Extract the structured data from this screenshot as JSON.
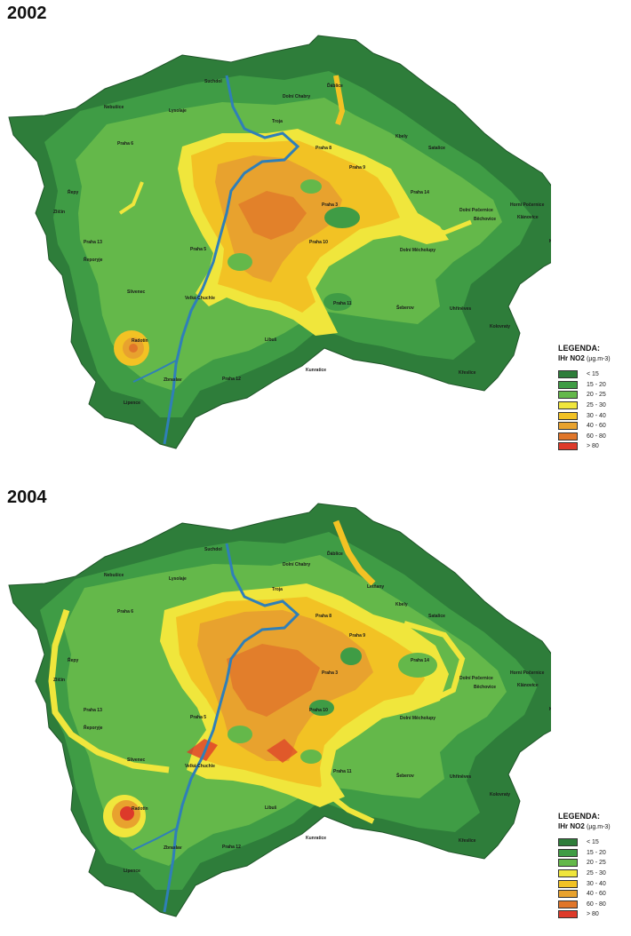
{
  "panels": [
    {
      "year": "2002",
      "places": [
        [
          "Suchdol",
          230,
          93
        ],
        [
          "Dolní Chabry",
          318,
          110
        ],
        [
          "Ďáblice",
          368,
          98
        ],
        [
          "Troja",
          306,
          138
        ],
        [
          "Praha 8",
          355,
          168
        ],
        [
          "Praha 9",
          393,
          190
        ],
        [
          "Kbely",
          445,
          155
        ],
        [
          "Satalice",
          482,
          168
        ],
        [
          "Praha 6",
          132,
          163
        ],
        [
          "Praha 14",
          462,
          218
        ],
        [
          "Horní Počernice",
          574,
          232
        ],
        [
          "Dolní Počernice",
          517,
          238
        ],
        [
          "Praha 3",
          362,
          232
        ],
        [
          "Praha 10",
          348,
          274
        ],
        [
          "Klánovice",
          582,
          246
        ],
        [
          "Koloděje",
          618,
          273
        ],
        [
          "Běchovice",
          533,
          248
        ],
        [
          "Praha 5",
          214,
          282
        ],
        [
          "Praha 11",
          375,
          343
        ],
        [
          "Lipence",
          139,
          455
        ],
        [
          "Zbraslav",
          184,
          429
        ],
        [
          "Praha 12",
          250,
          428
        ],
        [
          "Šeberov",
          446,
          348
        ],
        [
          "Kunratice",
          344,
          418
        ],
        [
          "Dolní Měcholupy",
          450,
          283
        ],
        [
          "Uhříněves",
          506,
          349
        ],
        [
          "Kolovraty",
          551,
          369
        ],
        [
          "Nebušice",
          117,
          122
        ],
        [
          "Lysolaje",
          190,
          126
        ],
        [
          "Řepy",
          76,
          218
        ],
        [
          "Zličín",
          60,
          240
        ],
        [
          "Velká Chuchle",
          208,
          337
        ],
        [
          "Slivenec",
          143,
          330
        ],
        [
          "Radotín",
          148,
          385
        ],
        [
          "Řeporyje",
          94,
          294
        ],
        [
          "Praha 13",
          94,
          274
        ],
        [
          "Křeslice",
          516,
          421
        ],
        [
          "Libuš",
          298,
          384
        ]
      ]
    },
    {
      "year": "2004",
      "places": [
        [
          "Suchdol",
          230,
          620
        ],
        [
          "Dolní Chabry",
          318,
          637
        ],
        [
          "Ďáblice",
          368,
          625
        ],
        [
          "Troja",
          306,
          665
        ],
        [
          "Praha 8",
          355,
          695
        ],
        [
          "Praha 9",
          393,
          717
        ],
        [
          "Kbely",
          445,
          682
        ],
        [
          "Letňany",
          413,
          662
        ],
        [
          "Satalice",
          482,
          695
        ],
        [
          "Praha 6",
          132,
          690
        ],
        [
          "Praha 14",
          462,
          745
        ],
        [
          "Horní Počernice",
          574,
          759
        ],
        [
          "Dolní Počernice",
          517,
          765
        ],
        [
          "Praha 3",
          362,
          759
        ],
        [
          "Praha 10",
          348,
          801
        ],
        [
          "Klánovice",
          582,
          773
        ],
        [
          "Koloděje",
          618,
          800
        ],
        [
          "Běchovice",
          533,
          775
        ],
        [
          "Praha 5",
          214,
          809
        ],
        [
          "Praha 11",
          375,
          870
        ],
        [
          "Lipence",
          139,
          982
        ],
        [
          "Zbraslav",
          184,
          956
        ],
        [
          "Praha 12",
          250,
          955
        ],
        [
          "Šeberov",
          446,
          875
        ],
        [
          "Kunratice",
          344,
          945
        ],
        [
          "Dolní Měcholupy",
          450,
          810
        ],
        [
          "Uhříněves",
          506,
          876
        ],
        [
          "Kolovraty",
          551,
          896
        ],
        [
          "Nebušice",
          117,
          649
        ],
        [
          "Lysolaje",
          190,
          653
        ],
        [
          "Řepy",
          76,
          745
        ],
        [
          "Zličín",
          60,
          767
        ],
        [
          "Velká Chuchle",
          208,
          864
        ],
        [
          "Slivenec",
          143,
          857
        ],
        [
          "Radotín",
          148,
          912
        ],
        [
          "Řeporyje",
          94,
          821
        ],
        [
          "Praha 13",
          94,
          801
        ],
        [
          "Křeslice",
          516,
          948
        ],
        [
          "Libuš",
          298,
          911
        ]
      ]
    }
  ],
  "legend": {
    "title": "LEGENDA:",
    "subtitle": "IHr NO2",
    "unit": "(µg.m-3)",
    "items": [
      {
        "label": "< 15",
        "color": "#2e7d3a"
      },
      {
        "label": "15 - 20",
        "color": "#3f9c45"
      },
      {
        "label": "20 - 25",
        "color": "#64b84a"
      },
      {
        "label": "25 - 30",
        "color": "#f0e63c"
      },
      {
        "label": "30 - 40",
        "color": "#f2c224"
      },
      {
        "label": "40 - 60",
        "color": "#e8a22e"
      },
      {
        "label": "60 - 80",
        "color": "#e0762a"
      },
      {
        "label": "> 80",
        "color": "#dd3a2a"
      }
    ]
  }
}
